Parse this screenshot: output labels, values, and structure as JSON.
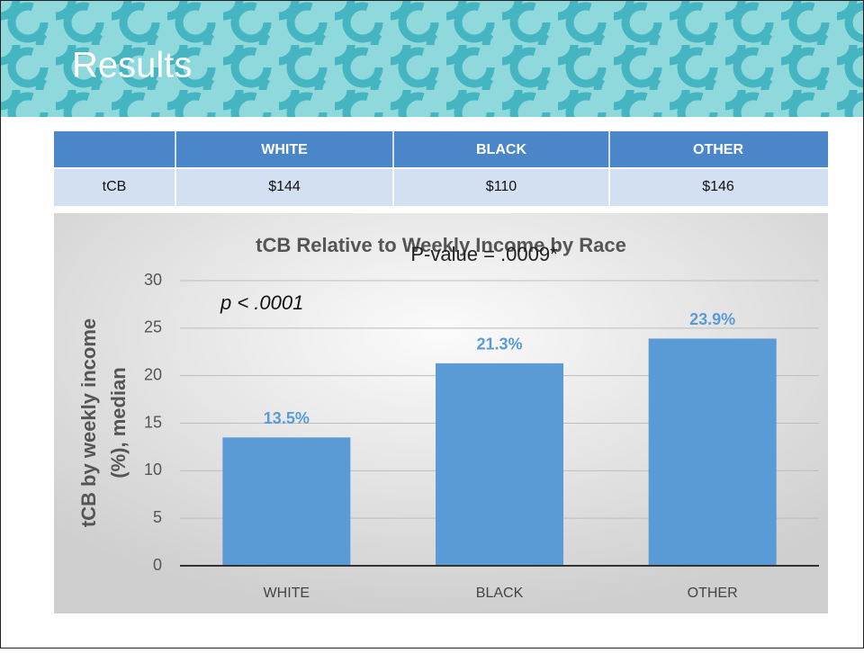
{
  "slide_title": "Results",
  "table": {
    "columns": [
      "WHITE",
      "BLACK",
      "OTHER"
    ],
    "rows": [
      [
        "tCB",
        "$144",
        "$110",
        "$146"
      ]
    ]
  },
  "chart_data": {
    "type": "bar",
    "title": "tCB Relative to Weekly Income by Race",
    "annotations": [
      "P-value = .0009*",
      "p < .0001"
    ],
    "y_label": [
      "tCB by weekly income",
      "(%), median"
    ],
    "categories": [
      "WHITE",
      "BLACK",
      "OTHER"
    ],
    "values": [
      13.5,
      21.3,
      23.9
    ],
    "value_labels": [
      "13.5%",
      "21.3%",
      "23.9%"
    ],
    "color": "#5b9bd5",
    "ylim": [
      0,
      30
    ],
    "yticks": [
      0,
      5,
      10,
      15,
      20,
      25,
      30
    ],
    "grid": true
  }
}
